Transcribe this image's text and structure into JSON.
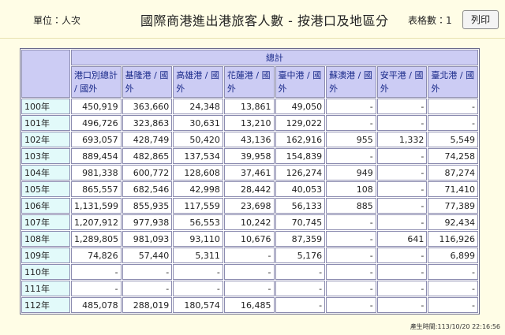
{
  "header": {
    "unit": "單位：人次",
    "title": "國際商港進出港旅客人數 - 按港口及地區分",
    "table_count": "表格數：1",
    "print_button": "列印"
  },
  "table": {
    "group_header": "總計",
    "columns": [
      "港口別總計 / 國外",
      "基隆港 / 國外",
      "高雄港 / 國外",
      "花蓮港 / 國外",
      "臺中港 / 國外",
      "蘇澳港 / 國外",
      "安平港 / 國外",
      "臺北港 / 國外"
    ],
    "rows": [
      {
        "label": "100年",
        "cells": [
          "450,919",
          "363,660",
          "24,348",
          "13,861",
          "49,050",
          "-",
          "-",
          "-"
        ]
      },
      {
        "label": "101年",
        "cells": [
          "496,726",
          "323,863",
          "30,631",
          "13,210",
          "129,022",
          "-",
          "-",
          "-"
        ]
      },
      {
        "label": "102年",
        "cells": [
          "693,057",
          "428,749",
          "50,420",
          "43,136",
          "162,916",
          "955",
          "1,332",
          "5,549"
        ]
      },
      {
        "label": "103年",
        "cells": [
          "889,454",
          "482,865",
          "137,534",
          "39,958",
          "154,839",
          "-",
          "-",
          "74,258"
        ]
      },
      {
        "label": "104年",
        "cells": [
          "981,338",
          "600,772",
          "128,608",
          "37,461",
          "126,274",
          "949",
          "-",
          "87,274"
        ]
      },
      {
        "label": "105年",
        "cells": [
          "865,557",
          "682,546",
          "42,998",
          "28,442",
          "40,053",
          "108",
          "-",
          "71,410"
        ]
      },
      {
        "label": "106年",
        "cells": [
          "1,131,599",
          "855,935",
          "117,559",
          "23,698",
          "56,133",
          "885",
          "-",
          "77,389"
        ]
      },
      {
        "label": "107年",
        "cells": [
          "1,207,912",
          "977,938",
          "56,553",
          "10,242",
          "70,745",
          "-",
          "-",
          "92,434"
        ]
      },
      {
        "label": "108年",
        "cells": [
          "1,289,805",
          "981,093",
          "93,110",
          "10,676",
          "87,359",
          "-",
          "641",
          "116,926"
        ]
      },
      {
        "label": "109年",
        "cells": [
          "74,826",
          "57,440",
          "5,311",
          "-",
          "5,176",
          "-",
          "-",
          "6,899"
        ]
      },
      {
        "label": "110年",
        "cells": [
          "-",
          "-",
          "-",
          "-",
          "-",
          "-",
          "-",
          "-"
        ]
      },
      {
        "label": "111年",
        "cells": [
          "-",
          "-",
          "-",
          "-",
          "-",
          "-",
          "-",
          "-"
        ]
      },
      {
        "label": "112年",
        "cells": [
          "485,078",
          "288,019",
          "180,574",
          "16,485",
          "-",
          "-",
          "-",
          "-"
        ]
      }
    ]
  },
  "footer": {
    "generated": "產生時間:113/10/20 22:16:56"
  }
}
